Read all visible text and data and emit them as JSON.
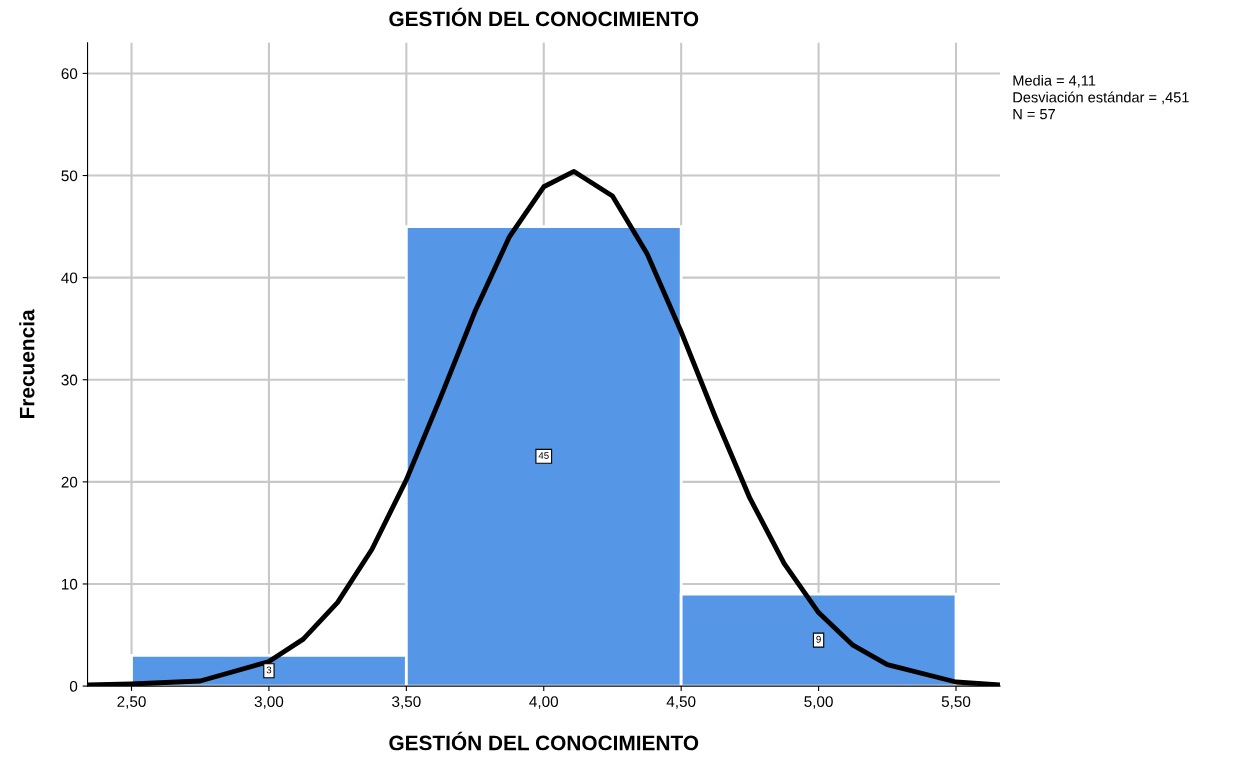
{
  "chart_data": {
    "type": "histogram",
    "title": "GESTIÓN DEL CONOCIMIENTO",
    "xlabel": "GESTIÓN DEL CONOCIMIENTO",
    "ylabel": "Frecuencia",
    "annotations": [
      "Media = 4,11",
      "Desviación estándar = ,451",
      "N = 57"
    ],
    "bins": [
      2.5,
      3.5,
      4.5,
      5.5
    ],
    "series": [
      {
        "color": "#5596e6",
        "values": [
          3,
          45,
          9
        ],
        "value_labels": [
          "3",
          "45",
          "9"
        ]
      },
      {
        "type": "line",
        "color": "#000000",
        "x": [
          2.34,
          2.5,
          2.75,
          3.0,
          3.125,
          3.25,
          3.375,
          3.5,
          3.625,
          3.75,
          3.875,
          4.0,
          4.11,
          4.25,
          4.375,
          4.5,
          4.625,
          4.75,
          4.875,
          5.0,
          5.125,
          5.25,
          5.5,
          5.66
        ],
        "values": [
          0.1,
          0.2,
          0.5,
          2.4,
          4.6,
          8.2,
          13.4,
          20.2,
          28.3,
          36.7,
          44.0,
          48.9,
          50.4,
          48.0,
          42.4,
          34.7,
          26.3,
          18.4,
          12.0,
          7.2,
          4.0,
          2.1,
          0.4,
          0.1
        ]
      }
    ],
    "xlim": [
      2.34,
      5.66
    ],
    "ylim": [
      0,
      63
    ],
    "xticks": [
      {
        "value": 2.5,
        "label": "2,50"
      },
      {
        "value": 3.0,
        "label": "3,00"
      },
      {
        "value": 3.5,
        "label": "3,50"
      },
      {
        "value": 4.0,
        "label": "4,00"
      },
      {
        "value": 4.5,
        "label": "4,50"
      },
      {
        "value": 5.0,
        "label": "5,00"
      },
      {
        "value": 5.5,
        "label": "5,50"
      }
    ],
    "yticks": [
      0,
      10,
      20,
      30,
      40,
      50,
      60
    ],
    "grid": true,
    "legend": false
  }
}
